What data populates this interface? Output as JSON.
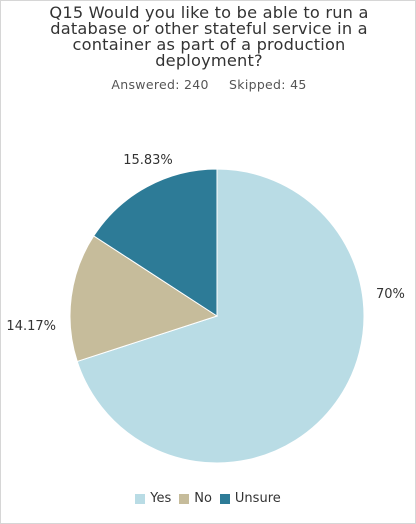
{
  "chart_data": {
    "type": "pie",
    "title": "Q15 Would you like to be able to run a\ndatabase or other stateful service in a\ncontainer as part of a production\ndeployment?",
    "answered_label": "Answered: 240",
    "skipped_label": "Skipped: 45",
    "slices": [
      {
        "label": "Yes",
        "value": 70,
        "value_label": "70%",
        "color": "#b9dce5"
      },
      {
        "label": "No",
        "value": 14.17,
        "value_label": "14.17%",
        "color": "#c6bc9b"
      },
      {
        "label": "Unsure",
        "value": 15.83,
        "value_label": "15.83%",
        "color": "#2d7b97"
      }
    ],
    "start": "12 o'clock",
    "direction": "clockwise",
    "legend_position": "bottom-center"
  }
}
